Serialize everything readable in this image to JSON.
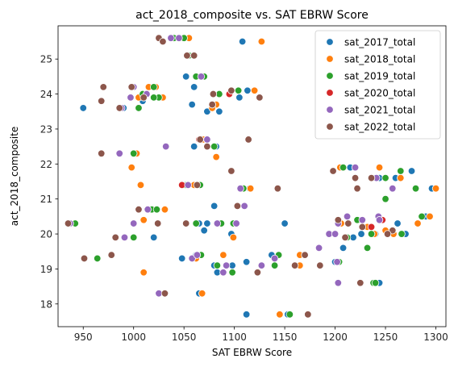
{
  "chart_data": {
    "type": "scatter",
    "title": "act_2018_composite vs. SAT EBRW Score",
    "xlabel": "SAT EBRW Score",
    "ylabel": "act_2018_composite",
    "xlim": [
      925,
      1310
    ],
    "ylim": [
      17.35,
      25.95
    ],
    "xticks": [
      950,
      1000,
      1050,
      1100,
      1150,
      1200,
      1250,
      1300
    ],
    "yticks": [
      18,
      19,
      20,
      21,
      22,
      23,
      24,
      25
    ],
    "grid": false,
    "legend_position": "upper-right",
    "series": [
      {
        "name": "sat_2017_total",
        "color": "#1f77b4",
        "points": [
          [
            950,
            23.6
          ],
          [
            1060,
            24.2
          ],
          [
            1052,
            24.5
          ],
          [
            1108,
            25.5
          ],
          [
            1073,
            23.5
          ],
          [
            1058,
            23.7
          ],
          [
            1085,
            23.5
          ],
          [
            1105,
            23.9
          ],
          [
            1113,
            24.1
          ],
          [
            1095,
            24.0
          ],
          [
            1009,
            23.8
          ],
          [
            990,
            23.6
          ],
          [
            1060,
            22.5
          ],
          [
            1082,
            22.5
          ],
          [
            1050,
            21.4
          ],
          [
            1115,
            21.3
          ],
          [
            1060,
            21.4
          ],
          [
            1080,
            20.8
          ],
          [
            1073,
            20.3
          ],
          [
            1085,
            20.3
          ],
          [
            1065,
            20.3
          ],
          [
            1070,
            20.1
          ],
          [
            1097,
            20.0
          ],
          [
            1150,
            20.3
          ],
          [
            1020,
            19.9
          ],
          [
            1048,
            19.3
          ],
          [
            1062,
            19.4
          ],
          [
            1098,
            19.1
          ],
          [
            1112,
            19.2
          ],
          [
            1080,
            19.1
          ],
          [
            1083,
            18.9
          ],
          [
            1137,
            19.4
          ],
          [
            1065,
            18.3
          ],
          [
            1112,
            17.7
          ],
          [
            1153,
            17.7
          ],
          [
            1215,
            21.9
          ],
          [
            1244,
            21.6
          ],
          [
            1260,
            21.6
          ],
          [
            1276,
            21.8
          ],
          [
            1296,
            21.3
          ],
          [
            1290,
            20.5
          ],
          [
            1270,
            20.0
          ],
          [
            1262,
            20.3
          ],
          [
            1245,
            20.4
          ],
          [
            1240,
            20.0
          ],
          [
            1226,
            20.0
          ],
          [
            1218,
            19.9
          ],
          [
            1208,
            19.6
          ],
          [
            1200,
            19.2
          ],
          [
            1240,
            18.6
          ],
          [
            1244,
            18.6
          ]
        ]
      },
      {
        "name": "sat_2018_total",
        "color": "#ff7f0e",
        "points": [
          [
            1055,
            25.6
          ],
          [
            1127,
            25.5
          ],
          [
            1022,
            24.2
          ],
          [
            1015,
            24.2
          ],
          [
            1010,
            24.0
          ],
          [
            1005,
            23.9
          ],
          [
            1029,
            23.9
          ],
          [
            1082,
            23.7
          ],
          [
            1120,
            24.1
          ],
          [
            1078,
            23.6
          ],
          [
            1069,
            22.7
          ],
          [
            1082,
            22.2
          ],
          [
            998,
            21.9
          ],
          [
            1003,
            22.3
          ],
          [
            1007,
            21.4
          ],
          [
            1060,
            21.4
          ],
          [
            1116,
            21.3
          ],
          [
            1031,
            20.7
          ],
          [
            1010,
            20.4
          ],
          [
            1000,
            20.3
          ],
          [
            1099,
            19.9
          ],
          [
            1062,
            19.3
          ],
          [
            1089,
            19.4
          ],
          [
            1140,
            19.1
          ],
          [
            1165,
            19.4
          ],
          [
            1165,
            19.1
          ],
          [
            1010,
            18.9
          ],
          [
            1068,
            18.3
          ],
          [
            1145,
            17.7
          ],
          [
            1205,
            21.9
          ],
          [
            1244,
            21.9
          ],
          [
            1265,
            21.6
          ],
          [
            1300,
            21.3
          ],
          [
            1294,
            20.5
          ],
          [
            1282,
            20.3
          ],
          [
            1258,
            20.0
          ],
          [
            1250,
            20.1
          ],
          [
            1239,
            20.0
          ],
          [
            1232,
            20.2
          ],
          [
            1246,
            20.4
          ],
          [
            1222,
            20.4
          ],
          [
            1206,
            20.3
          ]
        ]
      },
      {
        "name": "sat_2019_total",
        "color": "#2ca02c",
        "points": [
          [
            1050,
            25.6
          ],
          [
            1055,
            25.1
          ],
          [
            1040,
            25.6
          ],
          [
            1020,
            24.2
          ],
          [
            1062,
            24.5
          ],
          [
            1070,
            24.5
          ],
          [
            1085,
            24.0
          ],
          [
            1078,
            23.7
          ],
          [
            1104,
            24.1
          ],
          [
            1025,
            23.9
          ],
          [
            1020,
            23.9
          ],
          [
            1009,
            24.0
          ],
          [
            1005,
            23.6
          ],
          [
            1065,
            22.7
          ],
          [
            1080,
            22.5
          ],
          [
            1000,
            22.3
          ],
          [
            1066,
            21.4
          ],
          [
            1052,
            21.4
          ],
          [
            1109,
            21.3
          ],
          [
            1018,
            20.7
          ],
          [
            1023,
            20.7
          ],
          [
            1087,
            20.3
          ],
          [
            1099,
            20.3
          ],
          [
            1062,
            20.3
          ],
          [
            1000,
            19.9
          ],
          [
            964,
            19.3
          ],
          [
            1067,
            19.4
          ],
          [
            1083,
            19.1
          ],
          [
            1144,
            19.4
          ],
          [
            1140,
            19.1
          ],
          [
            1098,
            18.9
          ],
          [
            1155,
            17.7
          ],
          [
            1208,
            21.9
          ],
          [
            1250,
            21.6
          ],
          [
            1265,
            21.8
          ],
          [
            1280,
            21.3
          ],
          [
            1250,
            21.0
          ],
          [
            1286,
            20.5
          ],
          [
            1266,
            20.0
          ],
          [
            1247,
            20.4
          ],
          [
            1222,
            20.4
          ],
          [
            1236,
            20.0
          ],
          [
            1212,
            19.9
          ],
          [
            1232,
            19.6
          ],
          [
            1204,
            19.2
          ],
          [
            1238,
            18.6
          ],
          [
            1240,
            18.6
          ],
          [
            942,
            20.3
          ]
        ]
      },
      {
        "name": "sat_2020_total",
        "color": "#d62728",
        "points": [
          [
            1095,
            24.0
          ],
          [
            1065,
            22.7
          ],
          [
            1048,
            21.4
          ],
          [
            1110,
            20.8
          ],
          [
            1247,
            20.4
          ],
          [
            1236,
            20.2
          ]
        ]
      },
      {
        "name": "sat_2021_total",
        "color": "#9467bd",
        "points": [
          [
            1037,
            25.6
          ],
          [
            1045,
            25.6
          ],
          [
            1067,
            24.5
          ],
          [
            1000,
            24.2
          ],
          [
            997,
            23.9
          ],
          [
            1013,
            24.0
          ],
          [
            988,
            23.6
          ],
          [
            1032,
            22.5
          ],
          [
            1073,
            22.7
          ],
          [
            986,
            22.3
          ],
          [
            1054,
            21.4
          ],
          [
            1106,
            21.3
          ],
          [
            1014,
            20.7
          ],
          [
            1000,
            20.3
          ],
          [
            1102,
            20.3
          ],
          [
            991,
            19.9
          ],
          [
            1083,
            20.3
          ],
          [
            1000,
            20.3
          ],
          [
            1058,
            19.3
          ],
          [
            1063,
            19.4
          ],
          [
            1092,
            19.1
          ],
          [
            1140,
            19.3
          ],
          [
            1127,
            19.1
          ],
          [
            1025,
            18.3
          ],
          [
            1089,
            18.9
          ],
          [
            1110,
            20.8
          ],
          [
            1203,
            18.6
          ],
          [
            1220,
            21.9
          ],
          [
            1241,
            21.6
          ],
          [
            1257,
            21.3
          ],
          [
            1243,
            20.5
          ],
          [
            1227,
            20.4
          ],
          [
            1194,
            20.0
          ],
          [
            1203,
            20.3
          ],
          [
            1202,
            19.2
          ],
          [
            1212,
            20.5
          ],
          [
            1244,
            20.4
          ],
          [
            1200,
            20.0
          ],
          [
            1184,
            19.6
          ],
          [
            937,
            20.3
          ]
        ]
      },
      {
        "name": "sat_2022_total",
        "color": "#8c564b",
        "points": [
          [
            1025,
            25.6
          ],
          [
            1029,
            25.5
          ],
          [
            1053,
            25.1
          ],
          [
            1060,
            25.1
          ],
          [
            970,
            24.2
          ],
          [
            998,
            24.2
          ],
          [
            1010,
            23.9
          ],
          [
            968,
            23.8
          ],
          [
            986,
            23.6
          ],
          [
            1079,
            24.0
          ],
          [
            1078,
            23.7
          ],
          [
            1097,
            24.1
          ],
          [
            1125,
            23.9
          ],
          [
            1066,
            22.7
          ],
          [
            1114,
            22.7
          ],
          [
            1073,
            22.5
          ],
          [
            968,
            22.3
          ],
          [
            1097,
            21.8
          ],
          [
            1063,
            21.4
          ],
          [
            1143,
            21.3
          ],
          [
            1005,
            20.7
          ],
          [
            1052,
            20.3
          ],
          [
            1103,
            20.8
          ],
          [
            1024,
            20.3
          ],
          [
            982,
            19.9
          ],
          [
            1031,
            18.3
          ],
          [
            1123,
            18.9
          ],
          [
            951,
            19.3
          ],
          [
            978,
            19.4
          ],
          [
            1160,
            19.1
          ],
          [
            1170,
            19.4
          ],
          [
            1185,
            19.1
          ],
          [
            1173,
            17.7
          ],
          [
            1198,
            21.8
          ],
          [
            1220,
            21.6
          ],
          [
            1222,
            21.3
          ],
          [
            1213,
            20.3
          ],
          [
            1257,
            20.1
          ],
          [
            1227,
            20.2
          ],
          [
            1203,
            20.4
          ],
          [
            1210,
            19.9
          ],
          [
            1225,
            18.6
          ],
          [
            1252,
            20.0
          ],
          [
            1236,
            21.6
          ],
          [
            935,
            20.3
          ]
        ]
      }
    ]
  }
}
